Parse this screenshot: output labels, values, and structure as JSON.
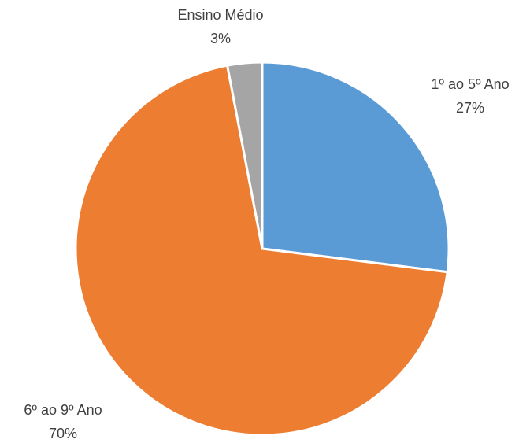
{
  "chart_data": {
    "type": "pie",
    "categories": [
      "1º ao 5º Ano",
      "6º ao 9º Ano",
      "Ensino Médio"
    ],
    "values": [
      27,
      70,
      3
    ],
    "value_labels": [
      "27%",
      "70%",
      "3%"
    ],
    "colors": [
      "#5b9bd5",
      "#ed7d31",
      "#a5a5a5"
    ]
  }
}
